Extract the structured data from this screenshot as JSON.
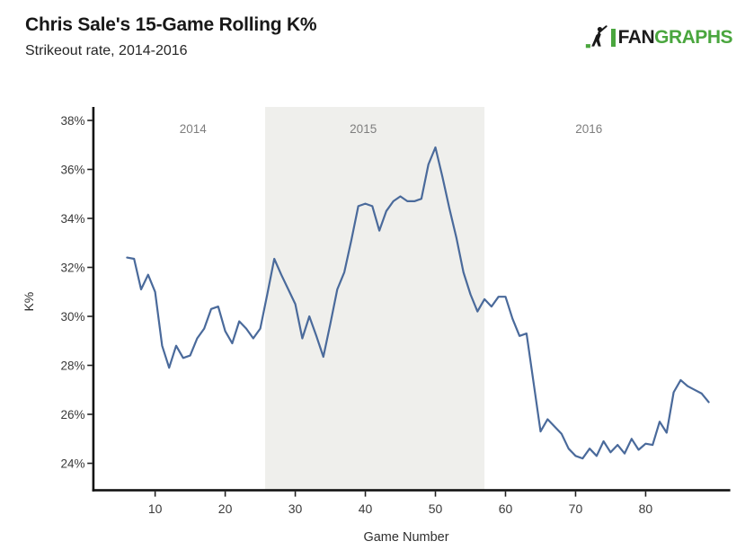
{
  "header": {
    "title": "Chris Sale's 15-Game Rolling K%",
    "subtitle": "Strikeout rate, 2014-2016"
  },
  "logo": {
    "fan": "FAN",
    "graphs": "GRAPHS",
    "green": "#4aa63e",
    "dark": "#1c1c1c"
  },
  "chart_data": {
    "type": "line",
    "title": "Chris Sale's 15-Game Rolling K%",
    "subtitle": "Strikeout rate, 2014-2016",
    "name": "15-Game Rolling K%",
    "xlabel": "Game Number",
    "ylabel": "K%",
    "grid": false,
    "legend": "none",
    "line_color": "#4a6a9b",
    "axis_color": "#111111",
    "tick_label_color": "#3a3a3a",
    "year_label_color": "#7e7e7e",
    "xlim": [
      1.2,
      92
    ],
    "ylim": [
      22.9,
      38.55
    ],
    "xticks": [
      10,
      20,
      30,
      40,
      50,
      60,
      70,
      80
    ],
    "yticks": [
      24,
      26,
      28,
      30,
      32,
      34,
      36,
      38
    ],
    "ytick_suffix": "%",
    "shaded_region": {
      "label": "2015",
      "x0": 25.7,
      "x1": 57.0,
      "color": "#efefec"
    },
    "annotations": [
      {
        "text": "2014",
        "x_game": 15.4
      },
      {
        "text": "2015",
        "x_game": 39.7
      },
      {
        "text": "2016",
        "x_game": 71.9
      }
    ],
    "x": [
      6,
      7,
      8,
      9,
      10,
      11,
      12,
      13,
      14,
      15,
      16,
      17,
      18,
      19,
      20,
      21,
      22,
      23,
      24,
      25,
      26,
      27,
      28,
      29,
      30,
      31,
      32,
      33,
      34,
      35,
      36,
      37,
      38,
      39,
      40,
      41,
      42,
      43,
      44,
      45,
      46,
      47,
      48,
      49,
      50,
      51,
      52,
      53,
      54,
      55,
      56,
      57,
      58,
      59,
      60,
      61,
      62,
      63,
      64,
      65,
      66,
      67,
      68,
      69,
      70,
      71,
      72,
      73,
      74,
      75,
      76,
      77,
      78,
      79,
      80,
      81,
      82,
      83,
      84,
      85,
      86,
      87,
      88,
      89
    ],
    "values": [
      32.4,
      32.35,
      31.1,
      31.7,
      31.0,
      28.8,
      27.9,
      28.8,
      28.3,
      28.4,
      29.1,
      29.5,
      30.3,
      30.4,
      29.4,
      28.9,
      29.8,
      29.5,
      29.1,
      29.5,
      30.9,
      32.35,
      31.7,
      31.1,
      30.5,
      29.1,
      30.0,
      29.2,
      28.35,
      29.7,
      31.1,
      31.8,
      33.1,
      34.5,
      34.6,
      34.5,
      33.5,
      34.3,
      34.7,
      34.9,
      34.7,
      34.7,
      34.8,
      36.2,
      36.9,
      35.7,
      34.4,
      33.2,
      31.8,
      30.9,
      30.2,
      30.7,
      30.4,
      30.8,
      30.8,
      29.9,
      29.2,
      29.3,
      27.3,
      25.3,
      25.8,
      25.5,
      25.2,
      24.6,
      24.3,
      24.2,
      24.6,
      24.3,
      24.9,
      24.45,
      24.75,
      24.4,
      25.0,
      24.55,
      24.8,
      24.75,
      25.7,
      25.25,
      26.9,
      27.4,
      27.15,
      27.0,
      26.85,
      26.5
    ]
  }
}
